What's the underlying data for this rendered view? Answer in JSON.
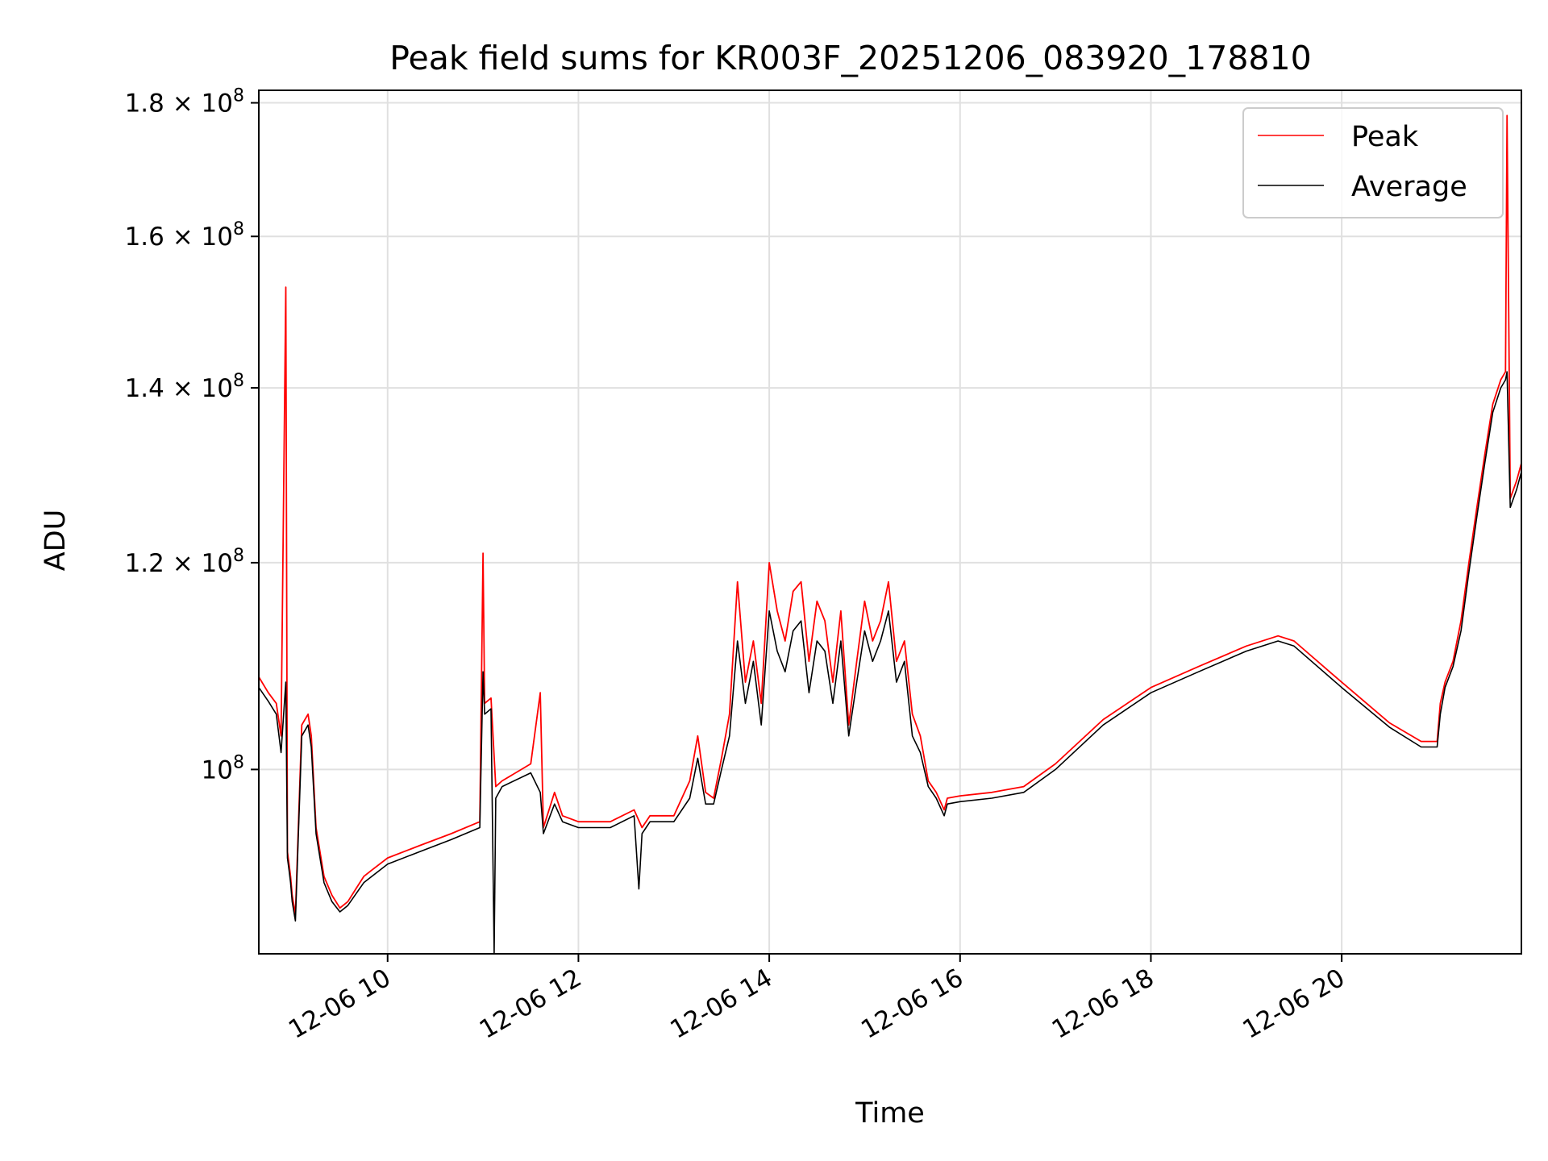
{
  "chart_data": {
    "type": "line",
    "title": "Peak field sums for KR003F_20251206_083920_178810",
    "xlabel": "Time",
    "ylabel": "ADU",
    "xlim": [
      "2025-12-06 08:39",
      "2025-12-06 21:53"
    ],
    "ylim": [
      85000000,
      182000000
    ],
    "yscale": "log",
    "grid": true,
    "legend_position": "top-right",
    "x_ticks": [
      "2025-12-06 10:00",
      "2025-12-06 12:00",
      "2025-12-06 14:00",
      "2025-12-06 16:00",
      "2025-12-06 18:00",
      "2025-12-06 20:00"
    ],
    "x_tick_labels": [
      "12-06 10",
      "12-06 12",
      "12-06 14",
      "12-06 16",
      "12-06 18",
      "12-06 20"
    ],
    "y_ticks": [
      {
        "value": 100000000,
        "mantissa": "",
        "exponent": "8"
      },
      {
        "value": 120000000,
        "mantissa": "1.2",
        "exponent": "8"
      },
      {
        "value": 140000000,
        "mantissa": "1.4",
        "exponent": "8"
      },
      {
        "value": 160000000,
        "mantissa": "1.6",
        "exponent": "8"
      },
      {
        "value": 180000000,
        "mantissa": "1.8",
        "exponent": "8"
      }
    ],
    "series": [
      {
        "name": "Peak",
        "color": "#ff0000",
        "x": [
          "2025-12-06 08:39",
          "2025-12-06 08:45",
          "2025-12-06 08:50",
          "2025-12-06 08:53",
          "2025-12-06 08:56",
          "2025-12-06 08:57",
          "2025-12-06 08:58",
          "2025-12-06 08:59",
          "2025-12-06 09:00",
          "2025-12-06 09:02",
          "2025-12-06 09:06",
          "2025-12-06 09:10",
          "2025-12-06 09:12",
          "2025-12-06 09:15",
          "2025-12-06 09:20",
          "2025-12-06 09:25",
          "2025-12-06 09:30",
          "2025-12-06 09:35",
          "2025-12-06 09:40",
          "2025-12-06 09:45",
          "2025-12-06 09:50",
          "2025-12-06 10:00",
          "2025-12-06 10:20",
          "2025-12-06 10:40",
          "2025-12-06 10:58",
          "2025-12-06 11:00",
          "2025-12-06 11:01",
          "2025-12-06 11:05",
          "2025-12-06 11:08",
          "2025-12-06 11:12",
          "2025-12-06 11:30",
          "2025-12-06 11:36",
          "2025-12-06 11:38",
          "2025-12-06 11:45",
          "2025-12-06 11:50",
          "2025-12-06 12:00",
          "2025-12-06 12:20",
          "2025-12-06 12:35",
          "2025-12-06 12:40",
          "2025-12-06 12:45",
          "2025-12-06 13:00",
          "2025-12-06 13:10",
          "2025-12-06 13:15",
          "2025-12-06 13:20",
          "2025-12-06 13:25",
          "2025-12-06 13:30",
          "2025-12-06 13:35",
          "2025-12-06 13:40",
          "2025-12-06 13:45",
          "2025-12-06 13:50",
          "2025-12-06 13:55",
          "2025-12-06 14:00",
          "2025-12-06 14:05",
          "2025-12-06 14:10",
          "2025-12-06 14:15",
          "2025-12-06 14:20",
          "2025-12-06 14:25",
          "2025-12-06 14:30",
          "2025-12-06 14:35",
          "2025-12-06 14:40",
          "2025-12-06 14:45",
          "2025-12-06 14:50",
          "2025-12-06 14:55",
          "2025-12-06 15:00",
          "2025-12-06 15:05",
          "2025-12-06 15:10",
          "2025-12-06 15:15",
          "2025-12-06 15:20",
          "2025-12-06 15:25",
          "2025-12-06 15:30",
          "2025-12-06 15:35",
          "2025-12-06 15:40",
          "2025-12-06 15:45",
          "2025-12-06 15:50",
          "2025-12-06 15:52",
          "2025-12-06 16:00",
          "2025-12-06 16:20",
          "2025-12-06 16:40",
          "2025-12-06 17:00",
          "2025-12-06 17:30",
          "2025-12-06 18:00",
          "2025-12-06 18:30",
          "2025-12-06 19:00",
          "2025-12-06 19:20",
          "2025-12-06 19:30",
          "2025-12-06 20:00",
          "2025-12-06 20:30",
          "2025-12-06 20:50",
          "2025-12-06 21:00",
          "2025-12-06 21:02",
          "2025-12-06 21:05",
          "2025-12-06 21:10",
          "2025-12-06 21:15",
          "2025-12-06 21:20",
          "2025-12-06 21:25",
          "2025-12-06 21:30",
          "2025-12-06 21:35",
          "2025-12-06 21:40",
          "2025-12-06 21:43",
          "2025-12-06 21:44",
          "2025-12-06 21:46",
          "2025-12-06 21:50",
          "2025-12-06 21:53"
        ],
        "values": [
          108500000,
          107000000,
          106000000,
          103000000,
          153000000,
          93000000,
          92000000,
          91000000,
          89500000,
          88000000,
          104000000,
          105000000,
          103000000,
          95000000,
          91000000,
          89500000,
          88500000,
          89000000,
          90000000,
          91000000,
          91500000,
          92500000,
          93500000,
          94500000,
          95500000,
          121000000,
          106000000,
          106500000,
          98500000,
          99000000,
          100500000,
          107000000,
          95000000,
          98000000,
          96000000,
          95500000,
          95500000,
          96500000,
          95000000,
          96000000,
          96000000,
          99000000,
          103000000,
          98000000,
          97500000,
          101000000,
          105000000,
          118000000,
          108000000,
          112000000,
          106000000,
          120000000,
          115000000,
          112000000,
          117000000,
          118000000,
          110000000,
          116000000,
          114000000,
          108000000,
          115000000,
          104000000,
          110000000,
          116000000,
          112000000,
          114000000,
          118000000,
          110000000,
          112000000,
          105000000,
          103000000,
          99000000,
          98000000,
          96500000,
          97500000,
          97700000,
          98000000,
          98500000,
          100500000,
          104500000,
          107500000,
          109500000,
          111500000,
          112500000,
          112000000,
          108000000,
          104200000,
          102500000,
          102500000,
          106000000,
          108000000,
          110000000,
          114000000,
          120000000,
          126000000,
          132000000,
          138000000,
          141000000,
          142000000,
          178000000,
          127000000,
          129000000,
          131000000
        ]
      },
      {
        "name": "Average",
        "color": "#000000",
        "x": [
          "2025-12-06 08:39",
          "2025-12-06 08:45",
          "2025-12-06 08:50",
          "2025-12-06 08:53",
          "2025-12-06 08:56",
          "2025-12-06 08:57",
          "2025-12-06 08:58",
          "2025-12-06 08:59",
          "2025-12-06 09:00",
          "2025-12-06 09:02",
          "2025-12-06 09:06",
          "2025-12-06 09:10",
          "2025-12-06 09:12",
          "2025-12-06 09:15",
          "2025-12-06 09:20",
          "2025-12-06 09:25",
          "2025-12-06 09:30",
          "2025-12-06 09:35",
          "2025-12-06 09:40",
          "2025-12-06 09:45",
          "2025-12-06 09:50",
          "2025-12-06 10:00",
          "2025-12-06 10:20",
          "2025-12-06 10:40",
          "2025-12-06 10:58",
          "2025-12-06 11:00",
          "2025-12-06 11:01",
          "2025-12-06 11:05",
          "2025-12-06 11:07",
          "2025-12-06 11:08",
          "2025-12-06 11:12",
          "2025-12-06 11:30",
          "2025-12-06 11:36",
          "2025-12-06 11:38",
          "2025-12-06 11:45",
          "2025-12-06 11:50",
          "2025-12-06 12:00",
          "2025-12-06 12:20",
          "2025-12-06 12:35",
          "2025-12-06 12:38",
          "2025-12-06 12:40",
          "2025-12-06 12:45",
          "2025-12-06 13:00",
          "2025-12-06 13:10",
          "2025-12-06 13:15",
          "2025-12-06 13:20",
          "2025-12-06 13:25",
          "2025-12-06 13:30",
          "2025-12-06 13:35",
          "2025-12-06 13:40",
          "2025-12-06 13:45",
          "2025-12-06 13:50",
          "2025-12-06 13:55",
          "2025-12-06 14:00",
          "2025-12-06 14:05",
          "2025-12-06 14:10",
          "2025-12-06 14:15",
          "2025-12-06 14:20",
          "2025-12-06 14:25",
          "2025-12-06 14:30",
          "2025-12-06 14:35",
          "2025-12-06 14:40",
          "2025-12-06 14:45",
          "2025-12-06 14:50",
          "2025-12-06 14:55",
          "2025-12-06 15:00",
          "2025-12-06 15:05",
          "2025-12-06 15:10",
          "2025-12-06 15:15",
          "2025-12-06 15:20",
          "2025-12-06 15:25",
          "2025-12-06 15:30",
          "2025-12-06 15:35",
          "2025-12-06 15:40",
          "2025-12-06 15:45",
          "2025-12-06 15:50",
          "2025-12-06 15:52",
          "2025-12-06 16:00",
          "2025-12-06 16:20",
          "2025-12-06 16:40",
          "2025-12-06 17:00",
          "2025-12-06 17:30",
          "2025-12-06 18:00",
          "2025-12-06 18:30",
          "2025-12-06 19:00",
          "2025-12-06 19:20",
          "2025-12-06 19:30",
          "2025-12-06 20:00",
          "2025-12-06 20:30",
          "2025-12-06 20:50",
          "2025-12-06 21:00",
          "2025-12-06 21:02",
          "2025-12-06 21:05",
          "2025-12-06 21:10",
          "2025-12-06 21:15",
          "2025-12-06 21:20",
          "2025-12-06 21:25",
          "2025-12-06 21:30",
          "2025-12-06 21:35",
          "2025-12-06 21:40",
          "2025-12-06 21:43",
          "2025-12-06 21:44",
          "2025-12-06 21:46",
          "2025-12-06 21:50",
          "2025-12-06 21:53"
        ],
        "values": [
          107500000,
          106200000,
          105000000,
          101500000,
          108000000,
          92500000,
          91500000,
          90500000,
          89000000,
          87500000,
          103000000,
          104000000,
          102000000,
          94500000,
          90500000,
          89000000,
          88200000,
          88700000,
          89600000,
          90500000,
          91000000,
          92000000,
          93000000,
          94000000,
          95000000,
          109000000,
          105000000,
          105500000,
          85000000,
          97500000,
          98500000,
          99700000,
          98000000,
          94500000,
          97000000,
          95500000,
          95000000,
          95000000,
          96000000,
          90000000,
          94500000,
          95500000,
          95500000,
          97500000,
          101000000,
          97000000,
          97000000,
          100000000,
          103000000,
          112000000,
          106000000,
          110000000,
          104000000,
          115000000,
          111000000,
          109000000,
          113000000,
          114000000,
          107000000,
          112000000,
          111000000,
          106000000,
          112000000,
          103000000,
          108000000,
          113000000,
          110000000,
          112000000,
          115000000,
          108000000,
          110000000,
          103000000,
          101500000,
          98500000,
          97500000,
          96000000,
          97000000,
          97200000,
          97500000,
          98000000,
          100000000,
          104000000,
          107000000,
          109000000,
          111000000,
          112000000,
          111500000,
          107500000,
          103800000,
          102000000,
          102000000,
          105000000,
          107500000,
          109500000,
          113000000,
          119000000,
          125000000,
          131000000,
          137000000,
          140000000,
          141000000,
          142000000,
          126000000,
          128000000,
          130000000
        ]
      }
    ]
  }
}
